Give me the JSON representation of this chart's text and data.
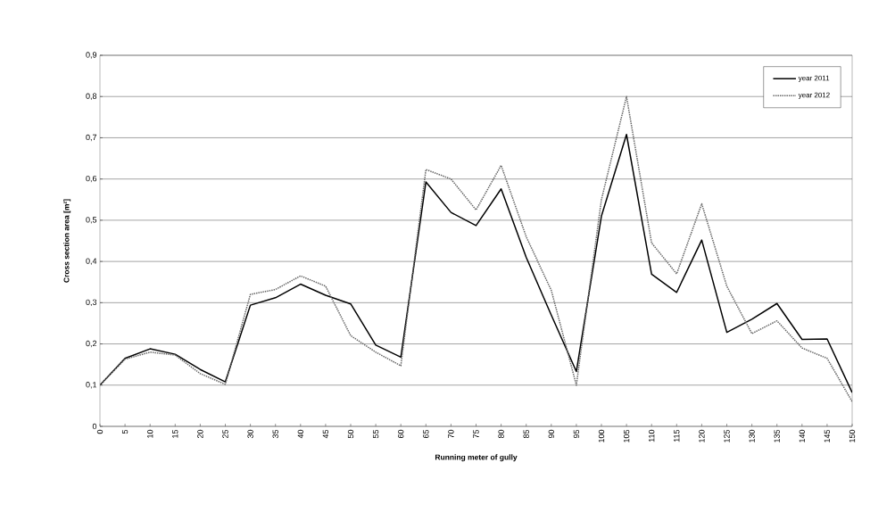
{
  "chart_data": {
    "type": "line",
    "xlabel": "Running meter of gully",
    "ylabel": "Cross section area [m²]",
    "x": [
      0,
      5,
      10,
      15,
      20,
      25,
      30,
      35,
      40,
      45,
      50,
      55,
      60,
      65,
      70,
      75,
      80,
      85,
      90,
      95,
      100,
      105,
      110,
      115,
      120,
      125,
      130,
      135,
      140,
      145,
      150
    ],
    "series": [
      {
        "name": "year  2011",
        "color": "#000000",
        "line_style": "solid",
        "values": [
          0.1,
          0.165,
          0.188,
          0.175,
          0.138,
          0.108,
          0.294,
          0.312,
          0.345,
          0.318,
          0.297,
          0.197,
          0.168,
          0.593,
          0.519,
          0.487,
          0.576,
          0.41,
          0.27,
          0.133,
          0.51,
          0.708,
          0.369,
          0.325,
          0.452,
          0.228,
          0.26,
          0.298,
          0.211,
          0.212,
          0.082
        ]
      },
      {
        "name": "year  2012",
        "color": "#666666",
        "line_style": "dotted",
        "values": [
          0.1,
          0.163,
          0.18,
          0.173,
          0.128,
          0.102,
          0.32,
          0.332,
          0.365,
          0.34,
          0.22,
          0.18,
          0.147,
          0.623,
          0.6,
          0.525,
          0.633,
          0.46,
          0.33,
          0.1,
          0.55,
          0.8,
          0.445,
          0.37,
          0.54,
          0.34,
          0.225,
          0.256,
          0.19,
          0.165,
          0.06
        ]
      }
    ],
    "xlim": [
      0,
      150
    ],
    "xticks": [
      0,
      5,
      10,
      15,
      20,
      25,
      30,
      35,
      40,
      45,
      50,
      55,
      60,
      65,
      70,
      75,
      80,
      85,
      90,
      95,
      100,
      105,
      110,
      115,
      120,
      125,
      130,
      135,
      140,
      145,
      150
    ],
    "ylim": [
      0,
      0.9
    ],
    "yticks": [
      {
        "value": 0,
        "label": "0"
      },
      {
        "value": 0.1,
        "label": "0,1"
      },
      {
        "value": 0.2,
        "label": "0,2"
      },
      {
        "value": 0.3,
        "label": "0,3"
      },
      {
        "value": 0.4,
        "label": "0,4"
      },
      {
        "value": 0.5,
        "label": "0,5"
      },
      {
        "value": 0.6,
        "label": "0,6"
      },
      {
        "value": 0.7,
        "label": "0,7"
      },
      {
        "value": 0.8,
        "label": "0,8"
      },
      {
        "value": 0.9,
        "label": "0,9"
      }
    ],
    "grid": "y",
    "legend": "top right"
  }
}
